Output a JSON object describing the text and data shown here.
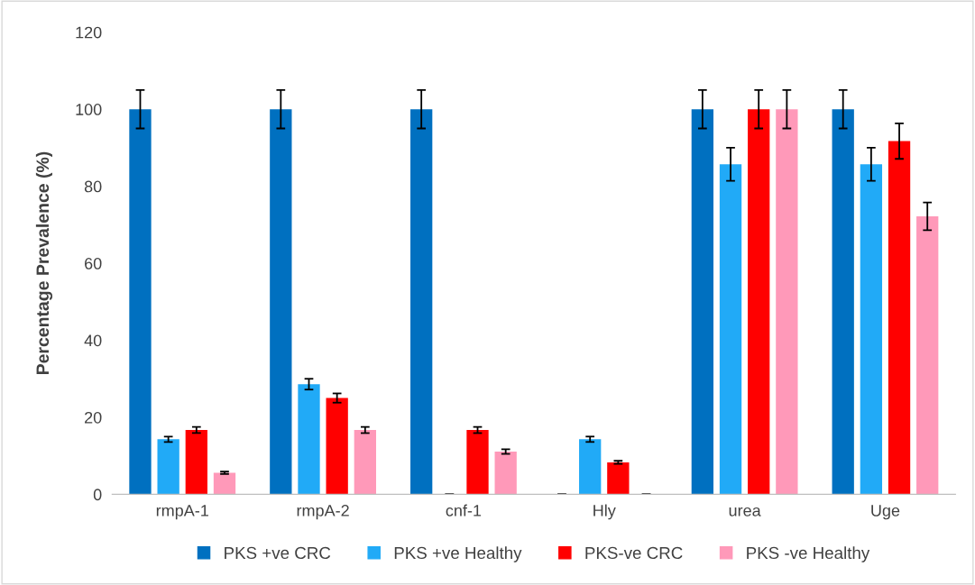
{
  "chart_data": {
    "type": "bar",
    "ylabel": "Percentage Prevalence (%)",
    "categories": [
      "rmpA-1",
      "rmpA-2",
      "cnf-1",
      "Hly",
      "urea",
      "Uge"
    ],
    "series": [
      {
        "name": "PKS +ve CRC",
        "color": "#0070c0",
        "values": [
          100,
          100,
          100,
          0,
          100,
          100
        ],
        "errors": [
          5,
          5,
          5,
          0,
          5,
          5
        ]
      },
      {
        "name": "PKS +ve Healthy",
        "color": "#21aaf7",
        "values": [
          14.3,
          28.6,
          0,
          14.3,
          85.7,
          85.7
        ],
        "errors": [
          0.7,
          1.4,
          0,
          0.7,
          4.3,
          4.3
        ]
      },
      {
        "name": "PKS-ve CRC",
        "color": "#ff0000",
        "values": [
          16.7,
          25,
          16.7,
          8.3,
          100,
          91.7
        ],
        "errors": [
          0.8,
          1.2,
          0.8,
          0.4,
          5,
          4.6
        ]
      },
      {
        "name": "PKS -ve Healthy",
        "color": "#ff99b9",
        "values": [
          5.6,
          16.7,
          11.1,
          0,
          100,
          72.2
        ],
        "errors": [
          0.3,
          0.8,
          0.6,
          0,
          5,
          3.6
        ]
      }
    ],
    "ylim": [
      0,
      120
    ],
    "yticks": [
      0,
      20,
      40,
      60,
      80,
      100,
      120
    ],
    "grid": false,
    "legend": "bottom"
  }
}
